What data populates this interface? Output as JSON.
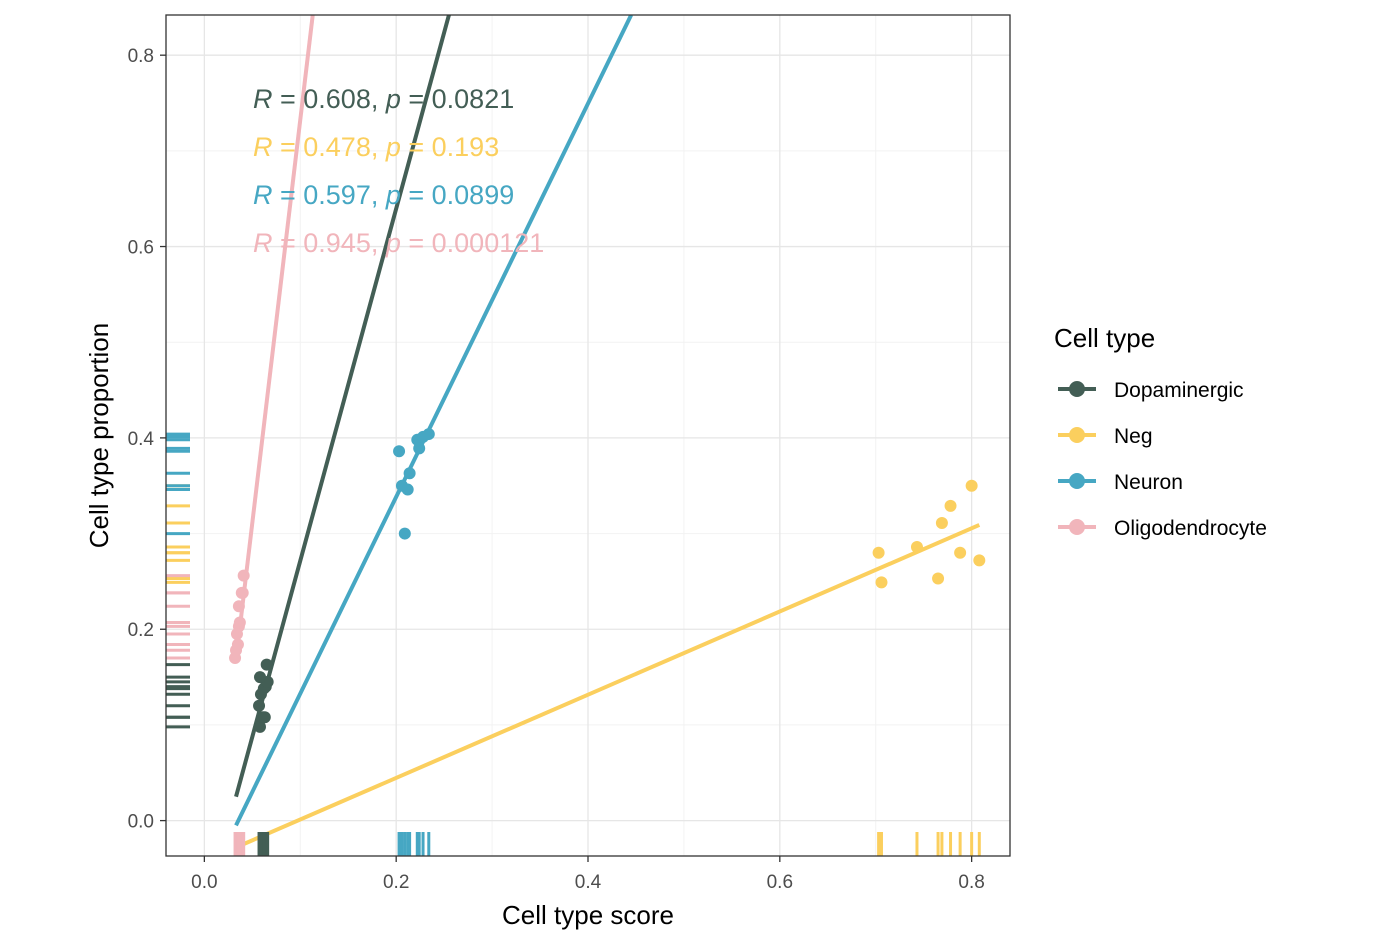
{
  "chart_data": {
    "type": "scatter",
    "xlabel": "Cell type score",
    "ylabel": "Cell type proportion",
    "xlim": [
      -0.04,
      0.84
    ],
    "ylim": [
      -0.037,
      0.842
    ],
    "x_ticks": [
      0.0,
      0.2,
      0.4,
      0.6,
      0.8
    ],
    "y_ticks": [
      0.0,
      0.2,
      0.4,
      0.6,
      0.8
    ],
    "x_tick_labels": [
      "0.0",
      "0.2",
      "0.4",
      "0.6",
      "0.8"
    ],
    "y_tick_labels": [
      "0.0",
      "0.2",
      "0.4",
      "0.6",
      "0.8"
    ],
    "grid": true,
    "legend": {
      "title": "Cell type",
      "position": "right"
    },
    "series": [
      {
        "name": "Dopaminergic",
        "color": "#435e55",
        "points": [
          [
            0.058,
            0.098
          ],
          [
            0.061,
            0.108
          ],
          [
            0.063,
            0.108
          ],
          [
            0.057,
            0.12
          ],
          [
            0.059,
            0.132
          ],
          [
            0.062,
            0.138
          ],
          [
            0.064,
            0.14
          ],
          [
            0.066,
            0.145
          ],
          [
            0.058,
            0.15
          ],
          [
            0.065,
            0.163
          ]
        ],
        "fit": [
          [
            0.033,
            0.025
          ],
          [
            0.255,
            0.842
          ]
        ],
        "annotation": {
          "r": "0.608",
          "p": "0.0821"
        }
      },
      {
        "name": "Neg",
        "color": "#fbcf5e",
        "points": [
          [
            0.703,
            0.28
          ],
          [
            0.706,
            0.249
          ],
          [
            0.743,
            0.286
          ],
          [
            0.765,
            0.253
          ],
          [
            0.769,
            0.311
          ],
          [
            0.778,
            0.329
          ],
          [
            0.788,
            0.28
          ],
          [
            0.8,
            0.35
          ],
          [
            0.808,
            0.272
          ]
        ],
        "fit": [
          [
            0.033,
            -0.028
          ],
          [
            0.808,
            0.309
          ]
        ],
        "annotation": {
          "r": "0.478",
          "p": "0.193"
        }
      },
      {
        "name": "Neuron",
        "color": "#46a7c3",
        "points": [
          [
            0.203,
            0.386
          ],
          [
            0.206,
            0.35
          ],
          [
            0.209,
            0.3
          ],
          [
            0.212,
            0.346
          ],
          [
            0.214,
            0.363
          ],
          [
            0.222,
            0.398
          ],
          [
            0.224,
            0.389
          ],
          [
            0.228,
            0.401
          ],
          [
            0.234,
            0.404
          ]
        ],
        "fit": [
          [
            0.033,
            -0.005
          ],
          [
            0.445,
            0.842
          ]
        ],
        "annotation": {
          "r": "0.597",
          "p": "0.0899"
        }
      },
      {
        "name": "Oligodendrocyte",
        "color": "#f1b5bb",
        "points": [
          [
            0.032,
            0.17
          ],
          [
            0.033,
            0.178
          ],
          [
            0.034,
            0.195
          ],
          [
            0.035,
            0.184
          ],
          [
            0.036,
            0.203
          ],
          [
            0.037,
            0.207
          ],
          [
            0.036,
            0.224
          ],
          [
            0.039,
            0.238
          ],
          [
            0.04,
            0.238
          ],
          [
            0.041,
            0.256
          ]
        ],
        "fit": [
          [
            0.033,
            0.168
          ],
          [
            0.113,
            0.842
          ]
        ],
        "annotation": {
          "r": "0.945",
          "p": "0.000121"
        }
      }
    ]
  }
}
